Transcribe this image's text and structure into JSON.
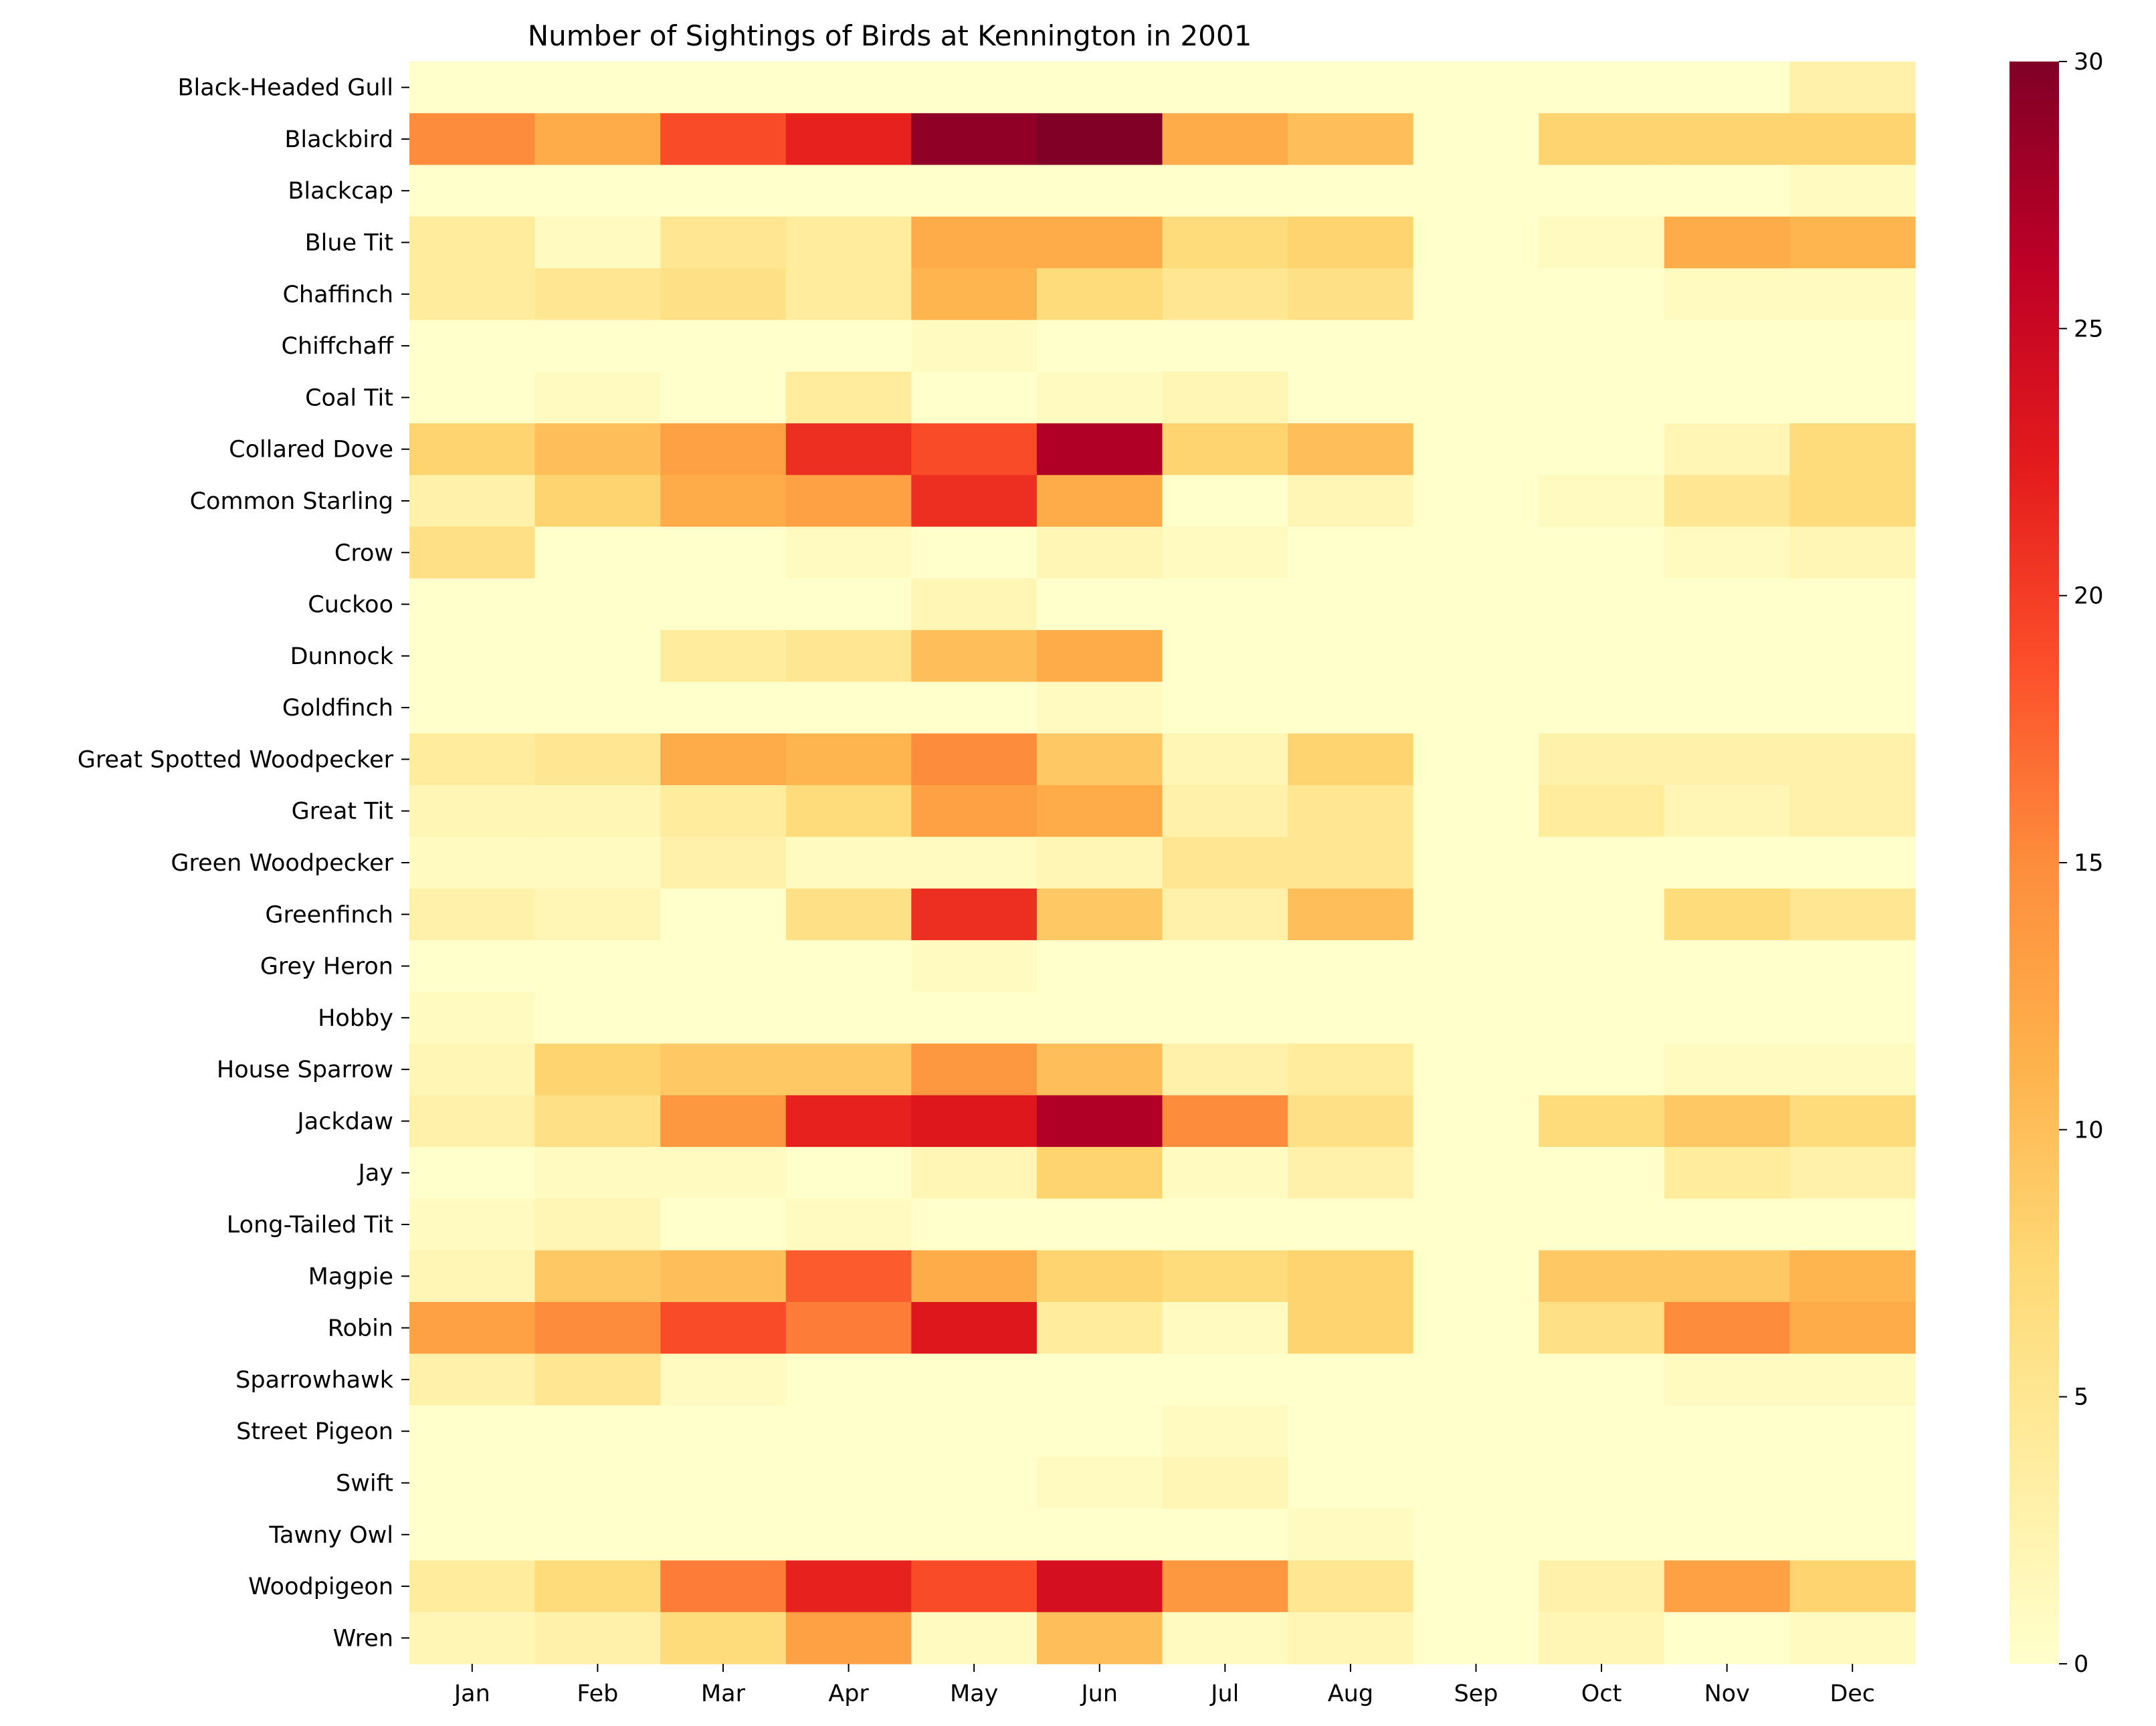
{
  "chart_data": {
    "type": "heatmap",
    "title": "Number of Sightings of Birds at Kennington in 2001",
    "xlabel": "",
    "ylabel": "",
    "x_categories": [
      "Jan",
      "Feb",
      "Mar",
      "Apr",
      "May",
      "Jun",
      "Jul",
      "Aug",
      "Sep",
      "Oct",
      "Nov",
      "Dec"
    ],
    "y_categories": [
      "Black-Headed Gull",
      "Blackbird",
      "Blackcap",
      "Blue Tit",
      "Chaffinch",
      "Chiffchaff",
      "Coal Tit",
      "Collared Dove",
      "Common Starling",
      "Crow",
      "Cuckoo",
      "Dunnock",
      "Goldfinch",
      "Great Spotted Woodpecker",
      "Great Tit",
      "Green Woodpecker",
      "Greenfinch",
      "Grey Heron",
      "Hobby",
      "House Sparrow",
      "Jackdaw",
      "Jay",
      "Long-Tailed Tit",
      "Magpie",
      "Robin",
      "Sparrowhawk",
      "Street Pigeon",
      "Swift",
      "Tawny Owl",
      "Woodpigeon",
      "Wren"
    ],
    "values": [
      [
        0,
        0,
        0,
        0,
        0,
        0,
        0,
        0,
        0,
        0,
        0,
        3
      ],
      [
        15,
        12,
        19,
        22,
        29,
        30,
        12,
        10,
        0,
        8,
        8,
        8
      ],
      [
        0,
        0,
        0,
        0,
        0,
        0,
        0,
        0,
        0,
        0,
        0,
        1
      ],
      [
        4,
        1,
        5,
        4,
        12,
        12,
        7,
        8,
        0,
        1,
        12,
        11
      ],
      [
        4,
        5,
        6,
        4,
        11,
        7,
        5,
        6,
        0,
        0,
        1,
        1
      ],
      [
        0,
        0,
        0,
        0,
        1,
        0,
        0,
        0,
        0,
        0,
        0,
        0
      ],
      [
        0,
        1,
        0,
        4,
        0,
        1,
        2,
        0,
        0,
        0,
        0,
        0
      ],
      [
        8,
        10,
        13,
        21,
        19,
        27,
        8,
        10,
        0,
        0,
        2,
        7
      ],
      [
        3,
        8,
        12,
        13,
        21,
        12,
        0,
        2,
        0,
        1,
        5,
        7
      ],
      [
        6,
        0,
        0,
        1,
        0,
        2,
        1,
        0,
        0,
        0,
        1,
        2
      ],
      [
        0,
        0,
        0,
        0,
        2,
        0,
        0,
        0,
        0,
        0,
        0,
        0
      ],
      [
        0,
        0,
        4,
        5,
        10,
        12,
        0,
        0,
        0,
        0,
        0,
        0
      ],
      [
        0,
        0,
        0,
        0,
        0,
        1,
        0,
        0,
        0,
        0,
        0,
        0
      ],
      [
        4,
        5,
        12,
        11,
        15,
        9,
        2,
        8,
        0,
        3,
        3,
        3
      ],
      [
        2,
        2,
        4,
        7,
        13,
        12,
        3,
        5,
        0,
        4,
        2,
        3
      ],
      [
        1,
        1,
        3,
        1,
        1,
        2,
        5,
        5,
        0,
        0,
        0,
        0
      ],
      [
        3,
        2,
        0,
        6,
        21,
        9,
        3,
        10,
        0,
        0,
        7,
        5
      ],
      [
        0,
        0,
        0,
        0,
        1,
        0,
        0,
        0,
        0,
        0,
        0,
        0
      ],
      [
        1,
        0,
        0,
        0,
        0,
        0,
        0,
        0,
        0,
        0,
        0,
        0
      ],
      [
        2,
        8,
        9,
        9,
        14,
        10,
        3,
        4,
        0,
        0,
        1,
        1
      ],
      [
        3,
        6,
        14,
        22,
        23,
        27,
        15,
        6,
        0,
        7,
        9,
        7
      ],
      [
        0,
        1,
        1,
        0,
        2,
        8,
        1,
        3,
        0,
        0,
        4,
        3
      ],
      [
        1,
        2,
        0,
        1,
        0,
        0,
        0,
        0,
        0,
        0,
        0,
        0
      ],
      [
        2,
        9,
        10,
        18,
        12,
        8,
        7,
        8,
        0,
        9,
        9,
        11
      ],
      [
        13,
        15,
        19,
        16,
        23,
        4,
        1,
        8,
        0,
        6,
        15,
        12
      ],
      [
        3,
        5,
        1,
        0,
        0,
        0,
        0,
        0,
        0,
        0,
        1,
        1
      ],
      [
        0,
        0,
        0,
        0,
        0,
        0,
        1,
        0,
        0,
        0,
        0,
        0
      ],
      [
        0,
        0,
        0,
        0,
        0,
        1,
        2,
        0,
        0,
        0,
        0,
        0
      ],
      [
        0,
        0,
        0,
        0,
        0,
        0,
        0,
        1,
        0,
        0,
        0,
        0
      ],
      [
        4,
        7,
        16,
        22,
        19,
        24,
        14,
        5,
        0,
        3,
        13,
        8
      ],
      [
        2,
        3,
        7,
        13,
        1,
        10,
        1,
        2,
        0,
        2,
        0,
        1
      ]
    ],
    "colorbar": {
      "min": 0,
      "max": 30,
      "ticks": [
        0,
        5,
        10,
        15,
        20,
        25,
        30
      ],
      "colormap": "YlOrRd"
    }
  }
}
